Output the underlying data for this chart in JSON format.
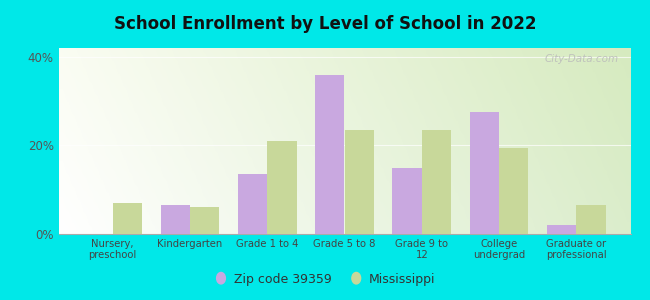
{
  "title": "School Enrollment by Level of School in 2022",
  "categories": [
    "Nursery,\npreschool",
    "Kindergarten",
    "Grade 1 to 4",
    "Grade 5 to 8",
    "Grade 9 to\n12",
    "College\nundergrad",
    "Graduate or\nprofessional"
  ],
  "zip_values": [
    0.0,
    6.5,
    13.5,
    36.0,
    15.0,
    27.5,
    2.0
  ],
  "ms_values": [
    7.0,
    6.0,
    21.0,
    23.5,
    23.5,
    19.5,
    6.5
  ],
  "zip_color": "#c9a8e0",
  "ms_color": "#c8d89a",
  "background_color": "#00e8e8",
  "ylim": [
    0,
    42
  ],
  "yticks": [
    0,
    20,
    40
  ],
  "ytick_labels": [
    "0%",
    "20%",
    "40%"
  ],
  "legend_zip_label": "Zip code 39359",
  "legend_ms_label": "Mississippi",
  "watermark": "City-Data.com",
  "bar_width": 0.38
}
